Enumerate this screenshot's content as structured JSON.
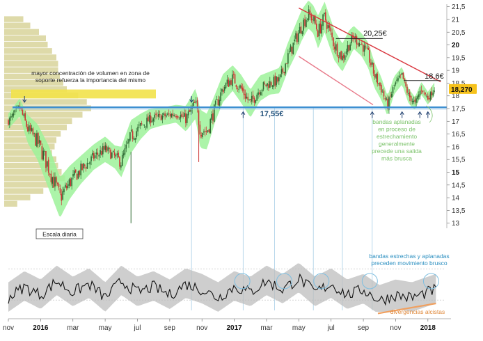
{
  "chart_data": {
    "type": "line",
    "title": "",
    "scale_label": "Escala diaria",
    "price_axis": {
      "ylim": [
        12.8,
        21.6
      ],
      "ticks": [
        "21,5",
        "21",
        "20,5",
        "20",
        "19,5",
        "19",
        "18,5",
        "18",
        "17,5",
        "17",
        "16,5",
        "16",
        "15,5",
        "15",
        "14,5",
        "14",
        "13,5",
        "13"
      ],
      "bold_ticks": [
        "20",
        "15"
      ],
      "current_price": "18,270"
    },
    "x_axis": {
      "labels": [
        "nov",
        "2016",
        "mar",
        "may",
        "jul",
        "sep",
        "nov",
        "2017",
        "mar",
        "may",
        "jul",
        "sep",
        "nov",
        "2018"
      ],
      "year_labels": [
        "2016",
        "2017",
        "2018"
      ],
      "month_index": [
        0,
        2,
        4,
        6,
        8,
        10,
        12,
        14,
        16,
        18,
        20,
        22,
        24,
        26
      ],
      "range_months": [
        0,
        27
      ]
    },
    "series": [
      {
        "name": "price_path",
        "x_months": [
          0,
          0.7,
          1.2,
          1.8,
          2.5,
          3.2,
          3.8,
          4.5,
          5.3,
          6.0,
          6.6,
          7.0,
          7.6,
          8.2,
          8.8,
          9.6,
          10.4,
          11.0,
          11.6,
          11.9,
          12.3,
          12.8,
          13.3,
          13.9,
          14.4,
          15.0,
          15.6,
          16.2,
          16.8,
          17.3,
          17.8,
          18.2,
          18.6,
          18.9,
          19.2,
          19.6,
          20.2,
          20.7,
          21.1,
          21.4,
          21.9,
          22.3,
          22.7,
          23.1,
          23.5,
          23.9,
          24.4,
          24.8,
          25.2,
          25.6,
          26.0,
          26.4
        ],
        "values": [
          17.0,
          17.55,
          16.7,
          16.2,
          15.2,
          14.0,
          14.6,
          15.1,
          15.6,
          15.9,
          15.6,
          15.4,
          16.4,
          16.8,
          17.1,
          17.2,
          17.3,
          17.1,
          17.7,
          16.7,
          16.6,
          17.5,
          18.3,
          18.7,
          18.3,
          17.7,
          18.3,
          18.5,
          18.6,
          19.5,
          20.2,
          20.8,
          21.2,
          21.0,
          20.5,
          21.1,
          20.0,
          19.5,
          20.0,
          20.3,
          20.0,
          19.6,
          18.8,
          18.3,
          17.6,
          18.4,
          18.8,
          18.0,
          17.7,
          18.3,
          17.9,
          18.27
        ]
      }
    ],
    "bollinger_halfwidth": [
      0.3,
      0.35,
      0.55,
      0.7,
      0.85,
      0.8,
      0.65,
      0.55,
      0.5,
      0.5,
      0.45,
      0.6,
      0.65,
      0.5,
      0.4,
      0.35,
      0.35,
      0.5,
      0.6,
      0.75,
      0.7,
      0.55,
      0.55,
      0.5,
      0.55,
      0.55,
      0.5,
      0.45,
      0.5,
      0.55,
      0.6,
      0.6,
      0.55,
      0.55,
      0.65,
      0.6,
      0.6,
      0.55,
      0.55,
      0.45,
      0.45,
      0.5,
      0.5,
      0.45,
      0.4,
      0.35,
      0.35,
      0.3,
      0.25,
      0.25,
      0.25,
      0.25
    ],
    "support_level": {
      "value": 17.55,
      "label": "17,55€"
    },
    "resistance_levels": [
      {
        "value": 20.25,
        "label": "20,25€"
      },
      {
        "value": 18.6,
        "label": "18,6€"
      }
    ],
    "trendlines": [
      {
        "name": "resistencia bajista",
        "from": [
          18.0,
          21.45
        ],
        "to": [
          26.8,
          18.55
        ],
        "color": "#d9363e"
      },
      {
        "name": "soporte bajista",
        "from": [
          18.0,
          19.55
        ],
        "to": [
          22.6,
          17.65
        ],
        "color": "#e87a8a"
      }
    ],
    "indicator": {
      "type": "area",
      "description": "Ancho de bandas de Bollinger",
      "x_months": [
        0,
        1,
        2,
        3,
        4,
        5,
        6,
        7,
        8,
        9,
        10,
        11,
        12,
        13,
        14,
        15,
        16,
        17,
        18,
        19,
        20,
        21,
        22,
        23,
        24,
        25,
        26,
        26.5
      ],
      "values": [
        0.3,
        0.5,
        0.35,
        0.6,
        0.4,
        0.55,
        0.3,
        0.6,
        0.4,
        0.5,
        0.35,
        0.55,
        0.45,
        0.3,
        0.5,
        0.4,
        0.6,
        0.45,
        0.65,
        0.4,
        0.55,
        0.35,
        0.45,
        0.25,
        0.35,
        0.3,
        0.4,
        0.45
      ]
    },
    "annotations": [
      {
        "id": "volume_note",
        "lines": [
          "mayor concentración de volumen en zona de",
          "soporte refuerza la importancia del mismo"
        ],
        "color": "dark"
      },
      {
        "id": "bands_note",
        "lines": [
          "bandas aplanadas",
          "en proceso de",
          "estrechamiento",
          "generalmente",
          "precede una salida",
          "más brusca"
        ],
        "color": "green"
      },
      {
        "id": "narrow_note",
        "lines": [
          "bandas estrechas y aplanadas",
          "preceden movimiento brusco"
        ],
        "color": "blue"
      },
      {
        "id": "divergence_note",
        "lines": [
          "divergencias alcistas"
        ],
        "color": "orange"
      }
    ],
    "colors": {
      "band_fill": "#9ef29a",
      "volume_fill": "#d8d39a",
      "volume_highlight": "#f2e24a",
      "support_line": "#3d8fd1",
      "trend_red": "#d9363e",
      "trend_pink": "#e87a8a",
      "price_badge": "#f6c21c",
      "up_candle": "#2f6a33",
      "down_candle": "#cc3333",
      "indicator_fill": "#bdbdbd",
      "divergence": "#f0a060"
    },
    "volume_profile": {
      "levels": [
        21.0,
        20.75,
        20.5,
        20.25,
        20.0,
        19.75,
        19.5,
        19.25,
        19.0,
        18.75,
        18.5,
        18.25,
        18.0,
        17.75,
        17.5,
        17.25,
        17.0,
        16.75,
        16.5,
        16.25,
        16.0,
        15.75,
        15.5,
        15.25,
        15.0,
        14.75,
        14.5,
        14.25,
        14.0,
        13.75
      ],
      "relative_volume": [
        0.22,
        0.3,
        0.4,
        0.48,
        0.5,
        0.55,
        0.6,
        0.62,
        0.62,
        0.64,
        0.68,
        0.72,
        0.85,
        0.95,
        1.0,
        0.9,
        0.78,
        0.72,
        0.65,
        0.6,
        0.58,
        0.55,
        0.6,
        0.62,
        0.66,
        0.7,
        0.62,
        0.45,
        0.3,
        0.15
      ]
    }
  }
}
